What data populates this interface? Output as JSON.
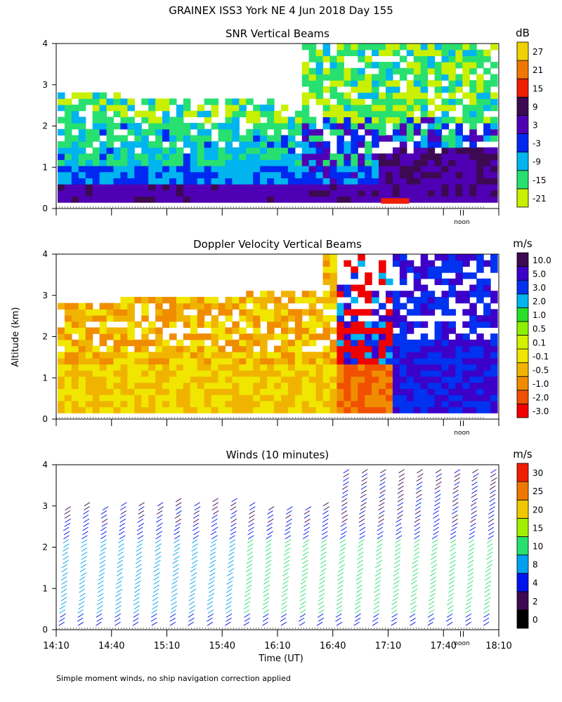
{
  "header": {
    "title": "GRAINEX ISS3 York NE    4 Jun 2018 Day 155"
  },
  "footer": {
    "note": "Simple moment winds, no ship navigation correction applied"
  },
  "shared": {
    "ylabel": "Altitude (km)",
    "xlabel": "Time (UT)",
    "noon_label": "noon",
    "y_ticks": [
      "0",
      "1",
      "2",
      "3",
      "4"
    ],
    "x_ticks": [
      "14:10",
      "14:40",
      "15:10",
      "15:40",
      "16:10",
      "16:40",
      "17:10",
      "17:40",
      "18:10"
    ]
  },
  "colors": {
    "snr": [
      "#c8f000",
      "#28e070",
      "#00b4f0",
      "#0028f0",
      "#5000b4",
      "#3c0a50",
      "#f01e00",
      "#f07800",
      "#f0d200"
    ],
    "doppler": [
      "#f00000",
      "#f05000",
      "#f08c00",
      "#f0b400",
      "#f0e600",
      "#d2f000",
      "#8cf000",
      "#28e028",
      "#00b4f0",
      "#0032f0",
      "#3c00c8",
      "#3c0a50"
    ],
    "winds": [
      "#000000",
      "#3c0a50",
      "#0014f0",
      "#00a0f0",
      "#28e070",
      "#a0f000",
      "#f0c800",
      "#f07800",
      "#f01e00"
    ]
  },
  "chart_data": [
    {
      "type": "heatmap",
      "title": "SNR Vertical Beams",
      "units": "dB",
      "xlabel": "",
      "ylabel": "Altitude (km)",
      "x_range": [
        "14:10",
        "18:10"
      ],
      "ylim": [
        0,
        4
      ],
      "colorbar_labels": [
        "-21",
        "-15",
        "-9",
        "-3",
        "3",
        "9",
        "15",
        "21",
        "27"
      ],
      "profile": [
        {
          "alt_km": [
            0.15,
            0.6
          ],
          "dB": "3 to 9"
        },
        {
          "alt_km": [
            0.6,
            1.0
          ],
          "dB": "-9 to -3"
        },
        {
          "alt_km": [
            1.0,
            2.0
          ],
          "dB": "-15 to -3"
        },
        {
          "alt_km": [
            2.0,
            2.7
          ],
          "dB": "-21 to -9"
        }
      ]
    },
    {
      "type": "heatmap",
      "title": "Doppler Velocity Vertical Beams",
      "units": "m/s",
      "xlabel": "",
      "ylabel": "Altitude (km)",
      "x_range": [
        "14:10",
        "18:10"
      ],
      "ylim": [
        0,
        4
      ],
      "colorbar_labels": [
        "-3.0",
        "-2.0",
        "-1.0",
        "-0.5",
        "-0.1",
        "0.1",
        "0.5",
        "1.0",
        "2.0",
        "3.0",
        "5.0",
        "10.0"
      ],
      "segments": [
        {
          "time": [
            "14:10",
            "16:40"
          ],
          "m_s": "-0.5 to 0.1"
        },
        {
          "time": [
            "16:40",
            "17:10"
          ],
          "m_s": "-3.0 to 5.0"
        },
        {
          "time": [
            "17:10",
            "18:10"
          ],
          "m_s": "2.0 to 5.0"
        }
      ]
    },
    {
      "type": "barbs",
      "title": "Winds (10 minutes)",
      "units": "m/s",
      "xlabel": "Time (UT)",
      "ylabel": "Altitude (km)",
      "x_range": [
        "14:10",
        "18:10"
      ],
      "ylim": [
        0,
        4
      ],
      "colorbar_labels": [
        "0",
        "2",
        "4",
        "8",
        "10",
        "15",
        "20",
        "25",
        "30"
      ],
      "times": [
        "14:10",
        "14:20",
        "14:30",
        "14:40",
        "14:50",
        "15:00",
        "15:10",
        "15:20",
        "15:30",
        "15:40",
        "15:50",
        "16:00",
        "16:10",
        "16:20",
        "16:30",
        "16:40",
        "16:50",
        "17:00",
        "17:10",
        "17:20",
        "17:30",
        "17:40",
        "17:50",
        "18:00"
      ]
    }
  ]
}
